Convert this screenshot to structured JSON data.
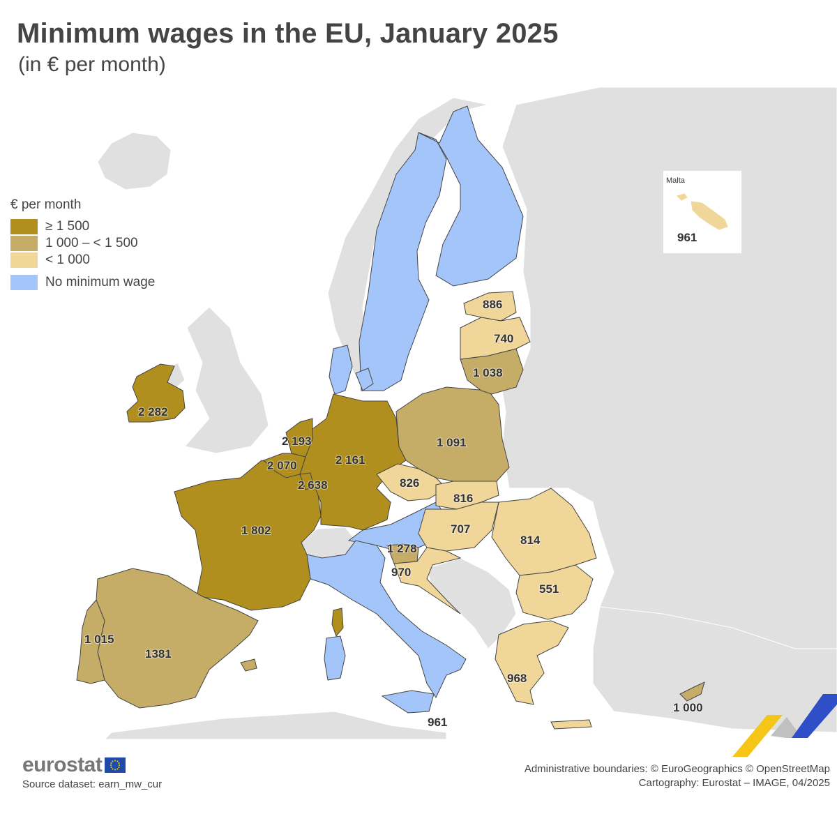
{
  "title": "Minimum wages in the EU, January 2025",
  "subtitle": "(in € per month)",
  "legend": {
    "title": "€ per month",
    "items": [
      {
        "label": "≥ 1 500",
        "color": "#b08f1e"
      },
      {
        "label": "1 000 – < 1 500",
        "color": "#c6ad67"
      },
      {
        "label": "< 1 000",
        "color": "#f0d699"
      },
      {
        "label": "No minimum wage",
        "color": "#a3c5fa"
      }
    ]
  },
  "colors": {
    "high": "#b08f1e",
    "mid": "#c6ad67",
    "low": "#f0d699",
    "none": "#a3c5fa",
    "non_eu": "#e0e0e0",
    "sea": "#ffffff",
    "border": "#444444"
  },
  "map_values": {
    "ireland": "2 282",
    "netherlands": "2 193",
    "belgium": "2 070",
    "luxembourg": "2 638",
    "germany": "2 161",
    "france": "1 802",
    "portugal": "1 015",
    "spain": "1381",
    "poland": "1 091",
    "czechia": "826",
    "slovakia": "816",
    "hungary": "707",
    "romania": "814",
    "bulgaria": "551",
    "slovenia": "1 278",
    "croatia": "970",
    "greece": "968",
    "cyprus": "1 000",
    "malta_sicily": "961",
    "estonia": "886",
    "latvia": "740",
    "lithuania": "1 038"
  },
  "malta_inset": {
    "title": "Malta",
    "value": "961"
  },
  "footer": {
    "logo": "eurostat",
    "source": "Source dataset: earn_mw_cur",
    "credit_line1": "Administrative boundaries: © EuroGeographics © OpenStreetMap",
    "credit_line2": "Cartography: Eurostat – IMAGE, 04/2025"
  }
}
